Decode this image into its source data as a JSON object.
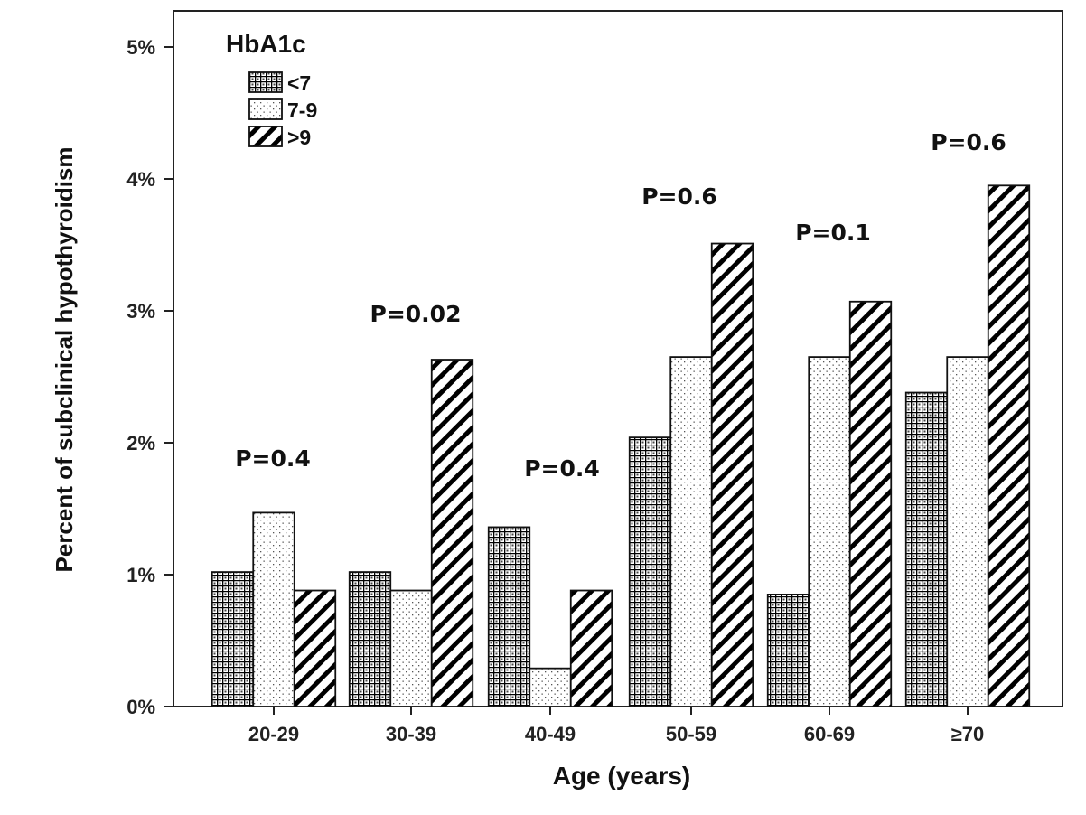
{
  "chart_data": {
    "type": "bar",
    "xlabel": "Age (years)",
    "ylabel": "Percent of subclinical hypothyroidism",
    "ylim": [
      0,
      5
    ],
    "yticks": [
      "0%",
      "1%",
      "2%",
      "3%",
      "4%",
      "5%"
    ],
    "grid": false,
    "legend": {
      "title": "HbA1c",
      "placement": "top-left"
    },
    "categories": [
      "20-29",
      "30-39",
      "40-49",
      "50-59",
      "60-69",
      "≥70"
    ],
    "series": [
      {
        "name": "<7",
        "pattern": "grid",
        "values": [
          1.02,
          1.02,
          1.36,
          2.04,
          0.85,
          2.38
        ]
      },
      {
        "name": "7-9",
        "pattern": "dots",
        "values": [
          1.47,
          0.88,
          0.29,
          2.65,
          2.65,
          2.65
        ]
      },
      {
        "name": ">9",
        "pattern": "diagonal",
        "values": [
          0.88,
          2.63,
          0.88,
          3.51,
          3.07,
          3.95
        ]
      }
    ],
    "annotations": [
      "P=0.4",
      "P=0.02",
      "P=0.4",
      "P=0.6",
      "P=0.1",
      "P=0.6"
    ]
  }
}
